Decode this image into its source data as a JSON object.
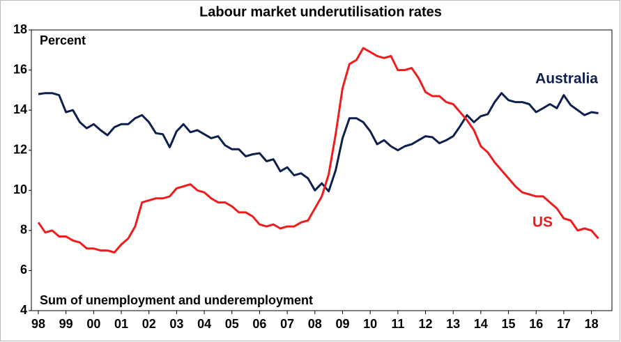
{
  "chart_data": {
    "type": "line",
    "title": "Labour market underutilisation rates",
    "annotations": [
      "Percent",
      "Sum of unemployment and underemployment"
    ],
    "categories": [
      "98",
      null,
      null,
      null,
      "99",
      null,
      null,
      null,
      "00",
      null,
      null,
      null,
      "01",
      null,
      null,
      null,
      "02",
      null,
      null,
      null,
      "03",
      null,
      null,
      null,
      "04",
      null,
      null,
      null,
      "05",
      null,
      null,
      null,
      "06",
      null,
      null,
      null,
      "07",
      null,
      null,
      null,
      "08",
      null,
      null,
      null,
      "09",
      null,
      null,
      null,
      "10",
      null,
      null,
      null,
      "11",
      null,
      null,
      null,
      "12",
      null,
      null,
      null,
      "13",
      null,
      null,
      null,
      "14",
      null,
      null,
      null,
      "15",
      null,
      null,
      null,
      "16",
      null,
      null,
      null,
      "17",
      null,
      null,
      null,
      "18",
      null
    ],
    "series": [
      {
        "name": "Australia",
        "color": "#0d1f4d",
        "values": [
          14.8,
          14.85,
          14.85,
          14.75,
          13.9,
          14.0,
          13.4,
          13.1,
          13.3,
          13.0,
          12.75,
          13.15,
          13.3,
          13.3,
          13.6,
          13.75,
          13.4,
          12.85,
          12.8,
          12.15,
          12.95,
          13.3,
          12.9,
          13.0,
          12.8,
          12.6,
          12.7,
          12.25,
          12.05,
          12.05,
          11.7,
          11.8,
          11.85,
          11.45,
          11.55,
          10.95,
          11.15,
          10.75,
          10.85,
          10.6,
          10.0,
          10.35,
          9.95,
          11.0,
          12.6,
          13.6,
          13.6,
          13.4,
          12.95,
          12.3,
          12.5,
          12.2,
          12.0,
          12.2,
          12.3,
          12.5,
          12.7,
          12.65,
          12.35,
          12.5,
          12.7,
          13.2,
          13.75,
          13.4,
          13.7,
          13.8,
          14.4,
          14.85,
          14.5,
          14.4,
          14.4,
          14.3,
          13.9,
          14.1,
          14.3,
          14.1,
          14.75,
          14.25,
          14.0,
          13.75,
          13.9,
          13.85
        ]
      },
      {
        "name": "US",
        "color": "#ee1c1c",
        "values": [
          8.4,
          7.9,
          8.0,
          7.7,
          7.7,
          7.5,
          7.4,
          7.1,
          7.1,
          7.0,
          7.0,
          6.9,
          7.3,
          7.6,
          8.2,
          9.4,
          9.5,
          9.6,
          9.6,
          9.7,
          10.1,
          10.2,
          10.3,
          10.0,
          9.9,
          9.6,
          9.4,
          9.4,
          9.2,
          8.9,
          8.9,
          8.7,
          8.3,
          8.2,
          8.3,
          8.1,
          8.2,
          8.2,
          8.4,
          8.5,
          9.1,
          9.7,
          10.8,
          12.8,
          15.1,
          16.3,
          16.5,
          17.1,
          16.9,
          16.7,
          16.6,
          16.7,
          16.0,
          16.0,
          16.1,
          15.6,
          14.9,
          14.7,
          14.7,
          14.4,
          14.3,
          13.9,
          13.5,
          13.0,
          12.2,
          11.9,
          11.4,
          11.0,
          10.6,
          10.2,
          9.9,
          9.8,
          9.7,
          9.7,
          9.4,
          9.1,
          8.6,
          8.5,
          8.0,
          8.1,
          8.0,
          7.6
        ]
      }
    ],
    "ylim": [
      4,
      18
    ],
    "yticks": [
      4,
      6,
      8,
      10,
      12,
      14,
      16,
      18
    ],
    "grid": false
  }
}
